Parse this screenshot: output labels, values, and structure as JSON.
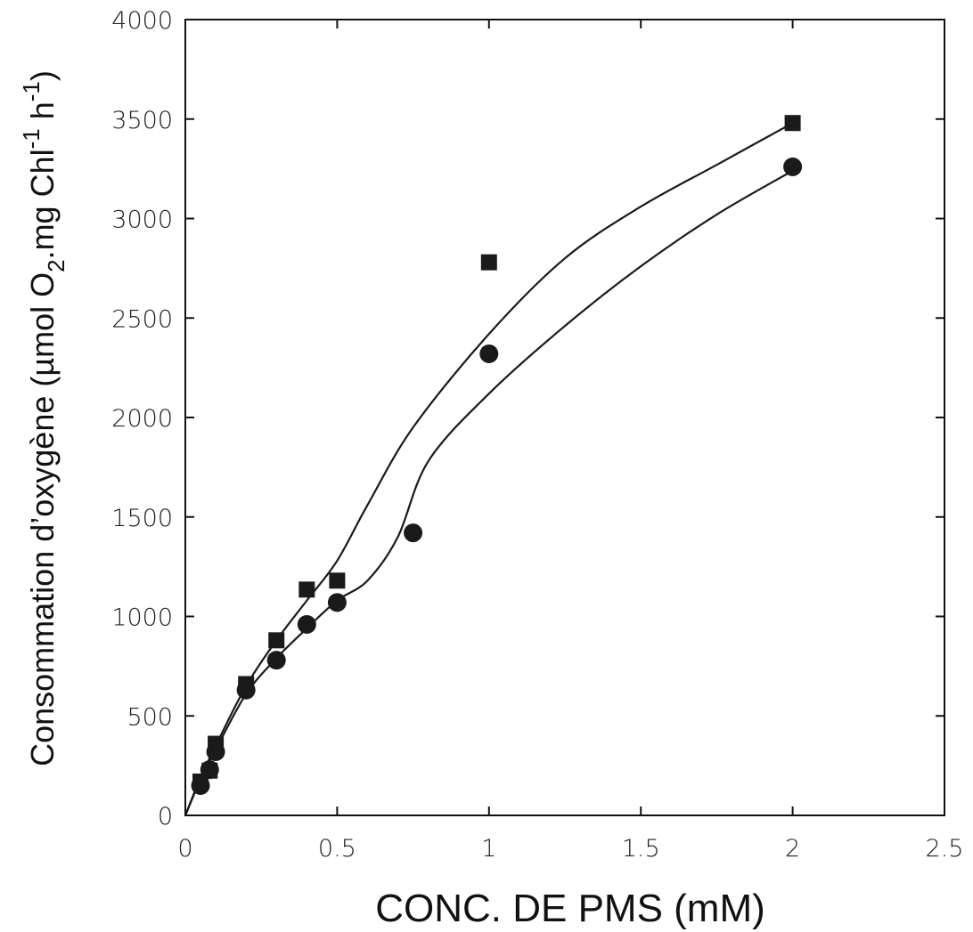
{
  "chart_data": {
    "type": "scatter",
    "title": "",
    "xlabel": "CONC. DE PMS (mM)",
    "ylabel": {
      "prefix": "Consommation d’oxygène (µmol O",
      "sub": "2",
      "middle": ".mg Chl",
      "sup1": "-1",
      "h": " h",
      "sup2": "-1",
      "suffix": ")"
    },
    "xlim": [
      0,
      2.5
    ],
    "ylim": [
      0,
      4000
    ],
    "xticks": [
      "0",
      "0.5",
      "1",
      "1.5",
      "2",
      "2.5"
    ],
    "xtick_values": [
      0,
      0.5,
      1,
      1.5,
      2,
      2.5
    ],
    "yticks": [
      "0",
      "500",
      "1000",
      "1500",
      "2000",
      "2500",
      "3000",
      "3500",
      "4000"
    ],
    "ytick_values": [
      0,
      500,
      1000,
      1500,
      2000,
      2500,
      3000,
      3500,
      4000
    ],
    "grid": false,
    "legend": "none",
    "series": [
      {
        "marker": "square",
        "color": "#1a1a1a",
        "x": [
          0.05,
          0.08,
          0.1,
          0.2,
          0.3,
          0.4,
          0.5,
          1.0,
          2.0
        ],
        "y": [
          170,
          225,
          360,
          660,
          880,
          1135,
          1180,
          2780,
          3480
        ],
        "curve_x": [
          0,
          0.05,
          0.1,
          0.2,
          0.3,
          0.4,
          0.5,
          0.6,
          0.75,
          1.0,
          1.25,
          1.5,
          1.75,
          2.0
        ],
        "curve_y": [
          0,
          190,
          350,
          650,
          880,
          1080,
          1280,
          1560,
          1950,
          2420,
          2800,
          3060,
          3270,
          3480
        ]
      },
      {
        "marker": "circle",
        "color": "#1a1a1a",
        "x": [
          0.05,
          0.08,
          0.1,
          0.2,
          0.3,
          0.4,
          0.5,
          0.75,
          1.0,
          2.0
        ],
        "y": [
          150,
          230,
          320,
          630,
          780,
          960,
          1070,
          1420,
          2320,
          3260
        ],
        "curve_x": [
          0,
          0.05,
          0.1,
          0.2,
          0.3,
          0.4,
          0.5,
          0.6,
          0.7,
          0.8,
          1.0,
          1.25,
          1.5,
          1.75,
          2.0
        ],
        "curve_y": [
          0,
          180,
          330,
          610,
          790,
          940,
          1080,
          1180,
          1400,
          1780,
          2120,
          2460,
          2760,
          3020,
          3240
        ]
      }
    ]
  }
}
